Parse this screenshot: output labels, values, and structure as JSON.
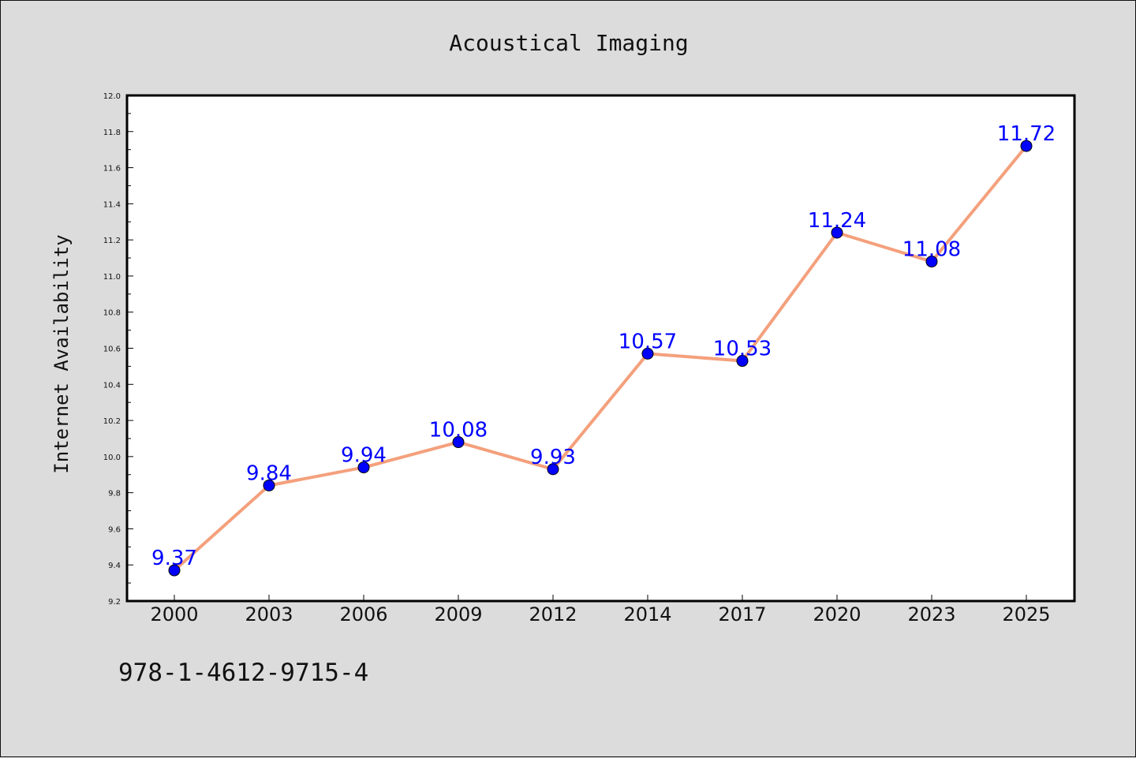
{
  "chart_data": {
    "type": "line",
    "title": "Acoustical Imaging",
    "xlabel": "",
    "ylabel": "Internet Availability",
    "categories": [
      "2000",
      "2003",
      "2006",
      "2009",
      "2012",
      "2014",
      "2017",
      "2020",
      "2023",
      "2025"
    ],
    "series": [
      {
        "values": [
          9.37,
          9.84,
          9.94,
          10.08,
          9.93,
          10.57,
          10.53,
          11.24,
          11.08,
          11.72
        ],
        "data_labels": [
          "9.37",
          "9.84",
          "9.94",
          "10.08",
          "9.93",
          "10.57",
          "10.53",
          "11.24",
          "11.08",
          "11.72"
        ],
        "line_color": "#f4a07c",
        "marker_color": "#0000ff"
      }
    ],
    "ylim": [
      9.2,
      12.0
    ],
    "yticks": [
      "9.2",
      "9.4",
      "9.6",
      "9.8",
      "10.0",
      "10.2",
      "10.4",
      "10.6",
      "10.8",
      "11.0",
      "11.2",
      "11.4",
      "11.6",
      "11.8",
      "12.0"
    ],
    "grid": false,
    "legend": "none"
  },
  "footer": {
    "isbn": "978-1-4612-9715-4"
  },
  "colors": {
    "background": "#dcdcdc",
    "plot_background": "#ffffff",
    "label_color": "#0000ff"
  }
}
